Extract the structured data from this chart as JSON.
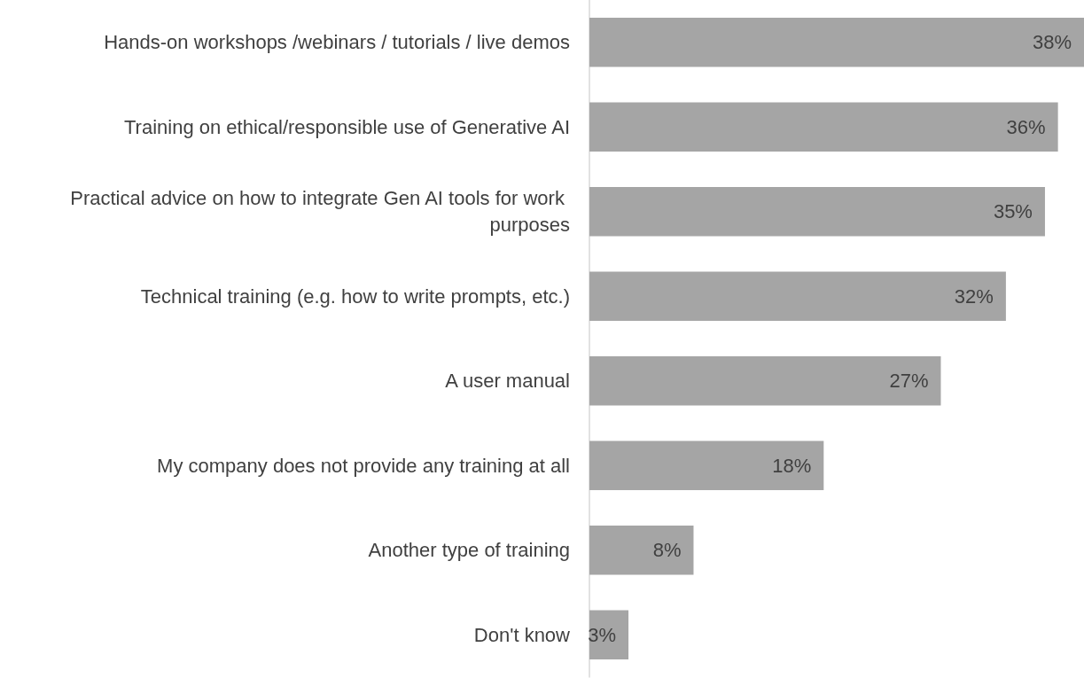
{
  "chart_data": {
    "type": "bar",
    "orientation": "horizontal",
    "categories": [
      "Hands-on workshops /webinars / tutorials / live demos",
      "Training on ethical/responsible use of Generative AI",
      "Practical advice on how to integrate Gen AI tools for work purposes",
      "Technical training (e.g. how to write prompts, etc.)",
      "A user manual",
      "My company does not provide any training at all",
      "Another type of training",
      "Don't know"
    ],
    "values": [
      38,
      36,
      35,
      32,
      27,
      18,
      8,
      3
    ],
    "value_labels": [
      "38%",
      "36%",
      "35%",
      "32%",
      "27%",
      "18%",
      "8%",
      "3%"
    ],
    "color": "#a5a5a5",
    "xlim": [
      0,
      38
    ],
    "tick_labels": "y"
  }
}
